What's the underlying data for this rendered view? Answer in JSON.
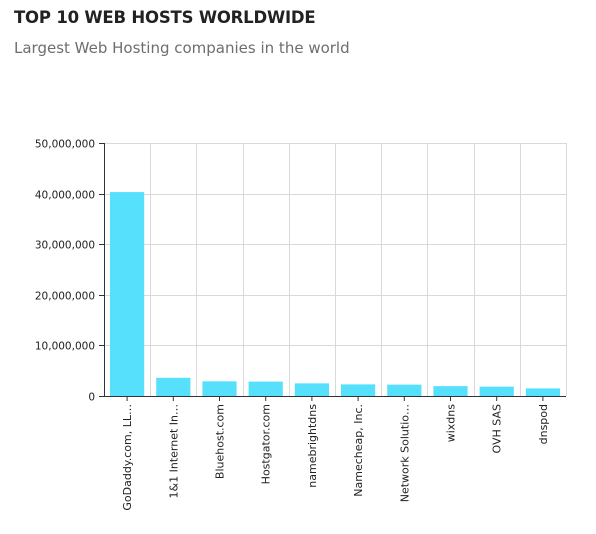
{
  "header": {
    "title": "TOP 10 WEB HOSTS WORLDWIDE",
    "subtitle": "Largest Web Hosting companies in the world"
  },
  "colors": {
    "bar": "#57e0fc",
    "grid": "#d9d9d9",
    "axis": "#333333",
    "text": "#222222"
  },
  "chart_data": {
    "type": "bar",
    "title": "TOP 10 WEB HOSTS WORLDWIDE",
    "subtitle": "Largest Web Hosting companies in the world",
    "xlabel": "",
    "ylabel": "",
    "ylim": [
      0,
      50000000
    ],
    "yticks": [
      0,
      10000000,
      20000000,
      30000000,
      40000000,
      50000000
    ],
    "ytick_labels": [
      "0",
      "10,000,000",
      "20,000,000",
      "30,000,000",
      "40,000,000",
      "50,000,000"
    ],
    "grid": true,
    "legend": "none",
    "categories": [
      "GoDaddy.com, LL…",
      "1&1 Internet In…",
      "Bluehost.com",
      "Hostgator.com",
      "namebrightdns",
      "Namecheap, Inc.",
      "Network Solutio…",
      "wixdns",
      "OVH SAS",
      "dnspod"
    ],
    "values": [
      40300000,
      3600000,
      2900000,
      2850000,
      2500000,
      2300000,
      2250000,
      1950000,
      1850000,
      1500000
    ]
  }
}
